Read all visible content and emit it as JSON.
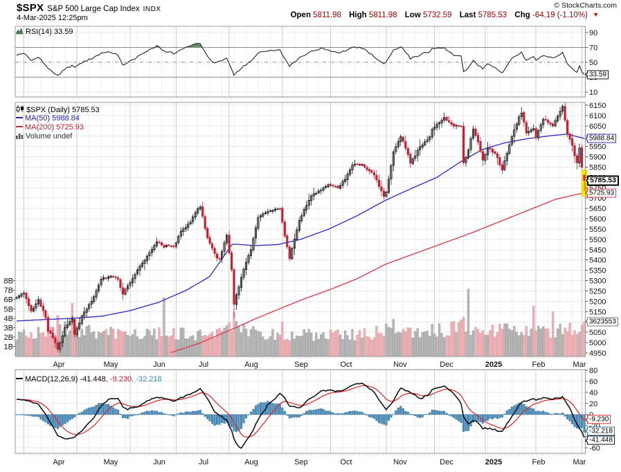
{
  "header": {
    "symbol": "$SPX",
    "name": "S&P 500 Large Cap Index",
    "exchange": "INDX",
    "datetime": "4-Mar-2025 12:25pm",
    "copyright": "© StockCharts.com",
    "quote": {
      "open_label": "Open",
      "open": "5811.98",
      "high_label": "High",
      "high": "5811.98",
      "low_label": "Low",
      "low": "5732.59",
      "last_label": "Last",
      "last": "5785.53",
      "chg_label": "Chg",
      "chg": "-64.19 (-1.10%)"
    }
  },
  "panels": {
    "rsi": {
      "legend": "RSI(14) 33.59",
      "callout": "33.59"
    },
    "price": {
      "legend_symbol": "$SPX (Daily) 5785.53",
      "legend_ma50": "MA(50) 5988.84",
      "legend_ma200": "MA(200) 5725.93",
      "legend_volume": "Volume undef",
      "callout_ma50": "5988.84",
      "callout_last": "5785.53",
      "callout_ma200": "5725.93",
      "callout_volume": "3623553"
    },
    "macd": {
      "legend_label": "MACD(12,26,9) -41.448",
      "legend_signal": "-9.230",
      "legend_hist": "-32.218",
      "sep1": ", ",
      "sep2": ", ",
      "callout_macd": "-41.448",
      "callout_signal": "-9.230",
      "callout_hist": "-32.218"
    }
  },
  "colors": {
    "candle_down": "#c32134",
    "candle_up_fill": "#ffffff",
    "candle_up_stroke": "#111111",
    "ma50": "#3333cc",
    "ma200": "#d6404f",
    "vol_up": "#b8b8b8",
    "vol_down": "#eeb0b4",
    "rsi_line": "#222222",
    "rsi_fill": "#66906a",
    "macd_line": "#111111",
    "signal_line": "#e02020",
    "hist_fill": "#4d8fbf",
    "hist_stroke": "#35719c",
    "quote_value": "#990000",
    "grid": "#e7e7e7",
    "grid_month": "#c8c8c8",
    "border": "#999999"
  },
  "chart_data": {
    "type": "candlestick",
    "title": "$SPX S&P 500 Large Cap Index (Daily) with RSI(14), MA(50), MA(200), Volume, MACD(12,26,9)",
    "x_range": [
      "late Mar 2024",
      "4 Mar 2025"
    ],
    "months": [
      "Apr",
      "May",
      "Jun",
      "Jul",
      "Aug",
      "Sep",
      "Oct",
      "Nov",
      "Dec",
      "2025",
      "Feb",
      "Mar"
    ],
    "bars": 236,
    "price": {
      "ylim": [
        4950,
        6150
      ],
      "tick_step": 50,
      "last_ohlc": {
        "open": 5811.98,
        "high": 5811.98,
        "low": 5732.59,
        "close": 5785.53,
        "change": -64.19,
        "change_pct": -1.1
      },
      "close_anchors": [
        [
          0,
          5218
        ],
        [
          0.013,
          5243
        ],
        [
          0.026,
          5147
        ],
        [
          0.038,
          5209
        ],
        [
          0.051,
          5123
        ],
        [
          0.055,
          5061
        ],
        [
          0.064,
          5022
        ],
        [
          0.072,
          4967
        ],
        [
          0.085,
          5071
        ],
        [
          0.098,
          5116
        ],
        [
          0.102,
          5035
        ],
        [
          0.115,
          5128
        ],
        [
          0.136,
          5222
        ],
        [
          0.149,
          5308
        ],
        [
          0.166,
          5321
        ],
        [
          0.179,
          5305
        ],
        [
          0.187,
          5235
        ],
        [
          0.196,
          5277
        ],
        [
          0.213,
          5352
        ],
        [
          0.23,
          5421
        ],
        [
          0.247,
          5487
        ],
        [
          0.26,
          5465
        ],
        [
          0.268,
          5475
        ],
        [
          0.277,
          5460
        ],
        [
          0.289,
          5537
        ],
        [
          0.306,
          5584
        ],
        [
          0.323,
          5667
        ],
        [
          0.336,
          5505
        ],
        [
          0.349,
          5427
        ],
        [
          0.357,
          5399
        ],
        [
          0.37,
          5522
        ],
        [
          0.379,
          5346
        ],
        [
          0.383,
          5186
        ],
        [
          0.396,
          5319
        ],
        [
          0.413,
          5455
        ],
        [
          0.426,
          5608
        ],
        [
          0.443,
          5634
        ],
        [
          0.464,
          5648
        ],
        [
          0.472,
          5520
        ],
        [
          0.481,
          5408
        ],
        [
          0.498,
          5595
        ],
        [
          0.519,
          5714
        ],
        [
          0.532,
          5733
        ],
        [
          0.549,
          5762
        ],
        [
          0.566,
          5751
        ],
        [
          0.579,
          5792
        ],
        [
          0.591,
          5860
        ],
        [
          0.609,
          5864
        ],
        [
          0.63,
          5808
        ],
        [
          0.647,
          5705
        ],
        [
          0.651,
          5729
        ],
        [
          0.664,
          5929
        ],
        [
          0.677,
          6001
        ],
        [
          0.694,
          5871
        ],
        [
          0.711,
          5949
        ],
        [
          0.728,
          5998
        ],
        [
          0.732,
          6032
        ],
        [
          0.753,
          6090
        ],
        [
          0.77,
          6051
        ],
        [
          0.783,
          6050
        ],
        [
          0.787,
          5872
        ],
        [
          0.796,
          5931
        ],
        [
          0.804,
          6040
        ],
        [
          0.813,
          5971
        ],
        [
          0.821,
          5882
        ],
        [
          0.83,
          5942
        ],
        [
          0.843,
          5918
        ],
        [
          0.855,
          5836
        ],
        [
          0.872,
          5997
        ],
        [
          0.889,
          6119
        ],
        [
          0.898,
          6012
        ],
        [
          0.911,
          6041
        ],
        [
          0.915,
          5995
        ],
        [
          0.928,
          6083
        ],
        [
          0.945,
          6052
        ],
        [
          0.962,
          6144
        ],
        [
          0.97,
          6013
        ],
        [
          0.979,
          5955
        ],
        [
          0.987,
          5862
        ],
        [
          0.991,
          5955
        ],
        [
          0.996,
          5850
        ],
        [
          1,
          5785.53
        ]
      ]
    },
    "ma50": {
      "period": 50,
      "last": 5988.84,
      "anchors": [
        [
          0,
          5105
        ],
        [
          0.05,
          5112
        ],
        [
          0.1,
          5118
        ],
        [
          0.15,
          5128
        ],
        [
          0.2,
          5155
        ],
        [
          0.25,
          5195
        ],
        [
          0.3,
          5255
        ],
        [
          0.34,
          5320
        ],
        [
          0.38,
          5478
        ],
        [
          0.42,
          5470
        ],
        [
          0.46,
          5475
        ],
        [
          0.5,
          5500
        ],
        [
          0.55,
          5550
        ],
        [
          0.6,
          5615
        ],
        [
          0.65,
          5690
        ],
        [
          0.7,
          5752
        ],
        [
          0.74,
          5800
        ],
        [
          0.78,
          5872
        ],
        [
          0.82,
          5935
        ],
        [
          0.86,
          5968
        ],
        [
          0.9,
          5988
        ],
        [
          0.94,
          6002
        ],
        [
          0.97,
          6010
        ],
        [
          1,
          5988.84
        ]
      ]
    },
    "ma200": {
      "period": 200,
      "last": 5725.93,
      "anchors": [
        [
          0.27,
          4950
        ],
        [
          0.32,
          4995
        ],
        [
          0.38,
          5065
        ],
        [
          0.42,
          5115
        ],
        [
          0.46,
          5160
        ],
        [
          0.5,
          5205
        ],
        [
          0.55,
          5255
        ],
        [
          0.6,
          5310
        ],
        [
          0.65,
          5380
        ],
        [
          0.7,
          5430
        ],
        [
          0.75,
          5480
        ],
        [
          0.8,
          5530
        ],
        [
          0.85,
          5585
        ],
        [
          0.9,
          5640
        ],
        [
          0.95,
          5695
        ],
        [
          1,
          5725.93
        ]
      ]
    },
    "volume": {
      "unit": "billions of shares",
      "axis_labels": [
        "8B",
        "7B",
        "6B",
        "5B",
        "4B",
        "3B",
        "2B",
        "1B"
      ],
      "last": 3623553,
      "anchors": [
        [
          0,
          2.3
        ],
        [
          0.05,
          2.6
        ],
        [
          0.072,
          2.9
        ],
        [
          0.1,
          2.7
        ],
        [
          0.15,
          2.4
        ],
        [
          0.2,
          2.5
        ],
        [
          0.26,
          2.4
        ],
        [
          0.3,
          2.3
        ],
        [
          0.35,
          2.2
        ],
        [
          0.383,
          3.4
        ],
        [
          0.42,
          2.4
        ],
        [
          0.47,
          2.1
        ],
        [
          0.52,
          2.2
        ],
        [
          0.58,
          2.2
        ],
        [
          0.63,
          2.4
        ],
        [
          0.664,
          3.0
        ],
        [
          0.7,
          2.5
        ],
        [
          0.75,
          2.7
        ],
        [
          0.787,
          3.2
        ],
        [
          0.83,
          2.9
        ],
        [
          0.87,
          2.7
        ],
        [
          0.91,
          2.6
        ],
        [
          0.95,
          2.5
        ],
        [
          0.98,
          2.9
        ],
        [
          1,
          3.62
        ]
      ],
      "spikes": [
        [
          0.072,
          4.3,
          ""
        ],
        [
          0.098,
          5.6,
          "d"
        ],
        [
          0.26,
          6.2,
          "u"
        ],
        [
          0.383,
          4.6,
          "d"
        ],
        [
          0.47,
          3.6,
          ""
        ],
        [
          0.664,
          3.9,
          "u"
        ],
        [
          0.796,
          7.1,
          "u"
        ],
        [
          0.911,
          5.3,
          "d"
        ],
        [
          0.945,
          4.7,
          "d"
        ]
      ]
    },
    "rsi": {
      "period": 14,
      "last": 33.59,
      "overbought": 70,
      "oversold": 30,
      "midline": 50,
      "ticks": [
        90,
        70,
        50,
        30,
        10
      ],
      "anchors": [
        [
          0,
          60
        ],
        [
          0.013,
          62
        ],
        [
          0.026,
          52
        ],
        [
          0.038,
          57
        ],
        [
          0.051,
          46
        ],
        [
          0.055,
          41
        ],
        [
          0.072,
          32
        ],
        [
          0.085,
          41
        ],
        [
          0.098,
          46
        ],
        [
          0.102,
          42
        ],
        [
          0.115,
          50
        ],
        [
          0.136,
          56
        ],
        [
          0.149,
          62
        ],
        [
          0.166,
          64
        ],
        [
          0.179,
          60
        ],
        [
          0.187,
          47
        ],
        [
          0.196,
          50
        ],
        [
          0.213,
          57
        ],
        [
          0.23,
          65
        ],
        [
          0.247,
          72
        ],
        [
          0.26,
          65
        ],
        [
          0.268,
          64
        ],
        [
          0.277,
          62
        ],
        [
          0.289,
          67
        ],
        [
          0.306,
          72
        ],
        [
          0.323,
          76
        ],
        [
          0.336,
          58
        ],
        [
          0.349,
          48
        ],
        [
          0.37,
          55
        ],
        [
          0.379,
          41
        ],
        [
          0.383,
          33
        ],
        [
          0.396,
          42
        ],
        [
          0.413,
          52
        ],
        [
          0.426,
          63
        ],
        [
          0.443,
          66
        ],
        [
          0.464,
          67
        ],
        [
          0.472,
          55
        ],
        [
          0.481,
          45
        ],
        [
          0.498,
          56
        ],
        [
          0.519,
          65
        ],
        [
          0.532,
          68
        ],
        [
          0.549,
          67
        ],
        [
          0.566,
          62
        ],
        [
          0.579,
          66
        ],
        [
          0.591,
          70
        ],
        [
          0.609,
          69
        ],
        [
          0.63,
          58
        ],
        [
          0.647,
          47
        ],
        [
          0.651,
          50
        ],
        [
          0.664,
          66
        ],
        [
          0.677,
          72
        ],
        [
          0.694,
          55
        ],
        [
          0.711,
          60
        ],
        [
          0.728,
          65
        ],
        [
          0.732,
          68
        ],
        [
          0.753,
          70
        ],
        [
          0.77,
          60
        ],
        [
          0.783,
          58
        ],
        [
          0.787,
          37
        ],
        [
          0.796,
          42
        ],
        [
          0.804,
          52
        ],
        [
          0.813,
          46
        ],
        [
          0.821,
          42
        ],
        [
          0.83,
          47
        ],
        [
          0.843,
          42
        ],
        [
          0.855,
          36
        ],
        [
          0.872,
          55
        ],
        [
          0.889,
          64
        ],
        [
          0.898,
          52
        ],
        [
          0.911,
          57
        ],
        [
          0.915,
          52
        ],
        [
          0.928,
          60
        ],
        [
          0.945,
          55
        ],
        [
          0.962,
          63
        ],
        [
          0.97,
          48
        ],
        [
          0.979,
          42
        ],
        [
          0.987,
          35
        ],
        [
          0.991,
          45
        ],
        [
          0.996,
          37
        ],
        [
          1,
          33.59
        ]
      ]
    },
    "macd": {
      "params": [
        12,
        26,
        9
      ],
      "last_macd": -41.448,
      "last_signal": -9.23,
      "last_hist": -32.218,
      "ylim": [
        -60,
        80
      ],
      "ticks": [
        80,
        60,
        40,
        20,
        0,
        -20,
        -40,
        -60
      ],
      "anchors": [
        [
          0,
          28
        ],
        [
          0.013,
          26
        ],
        [
          0.026,
          22
        ],
        [
          0.038,
          18
        ],
        [
          0.051,
          2
        ],
        [
          0.055,
          -8
        ],
        [
          0.064,
          -22
        ],
        [
          0.072,
          -38
        ],
        [
          0.085,
          -44
        ],
        [
          0.098,
          -42
        ],
        [
          0.102,
          -40
        ],
        [
          0.115,
          -30
        ],
        [
          0.136,
          -5
        ],
        [
          0.149,
          15
        ],
        [
          0.166,
          30
        ],
        [
          0.179,
          28
        ],
        [
          0.187,
          15
        ],
        [
          0.196,
          10
        ],
        [
          0.213,
          15
        ],
        [
          0.23,
          25
        ],
        [
          0.247,
          32
        ],
        [
          0.26,
          28
        ],
        [
          0.277,
          25
        ],
        [
          0.289,
          30
        ],
        [
          0.306,
          38
        ],
        [
          0.323,
          46
        ],
        [
          0.336,
          30
        ],
        [
          0.349,
          5
        ],
        [
          0.37,
          -10
        ],
        [
          0.379,
          -30
        ],
        [
          0.383,
          -45
        ],
        [
          0.39,
          -58
        ],
        [
          0.396,
          -60
        ],
        [
          0.413,
          -35
        ],
        [
          0.426,
          -8
        ],
        [
          0.443,
          18
        ],
        [
          0.464,
          38
        ],
        [
          0.472,
          30
        ],
        [
          0.481,
          15
        ],
        [
          0.498,
          12
        ],
        [
          0.519,
          30
        ],
        [
          0.532,
          40
        ],
        [
          0.549,
          45
        ],
        [
          0.566,
          42
        ],
        [
          0.579,
          45
        ],
        [
          0.591,
          52
        ],
        [
          0.609,
          58
        ],
        [
          0.63,
          40
        ],
        [
          0.647,
          15
        ],
        [
          0.651,
          10
        ],
        [
          0.664,
          25
        ],
        [
          0.677,
          48
        ],
        [
          0.694,
          40
        ],
        [
          0.711,
          28
        ],
        [
          0.728,
          38
        ],
        [
          0.732,
          44
        ],
        [
          0.753,
          52
        ],
        [
          0.77,
          38
        ],
        [
          0.783,
          20
        ],
        [
          0.787,
          -5
        ],
        [
          0.796,
          -18
        ],
        [
          0.804,
          -10
        ],
        [
          0.813,
          -15
        ],
        [
          0.821,
          -25
        ],
        [
          0.83,
          -25
        ],
        [
          0.843,
          -28
        ],
        [
          0.855,
          -30
        ],
        [
          0.872,
          -5
        ],
        [
          0.889,
          22
        ],
        [
          0.898,
          25
        ],
        [
          0.911,
          28
        ],
        [
          0.915,
          25
        ],
        [
          0.928,
          30
        ],
        [
          0.945,
          28
        ],
        [
          0.962,
          32
        ],
        [
          0.97,
          20
        ],
        [
          0.979,
          2
        ],
        [
          0.987,
          -18
        ],
        [
          0.996,
          -32
        ],
        [
          1,
          -41.448
        ]
      ]
    }
  }
}
